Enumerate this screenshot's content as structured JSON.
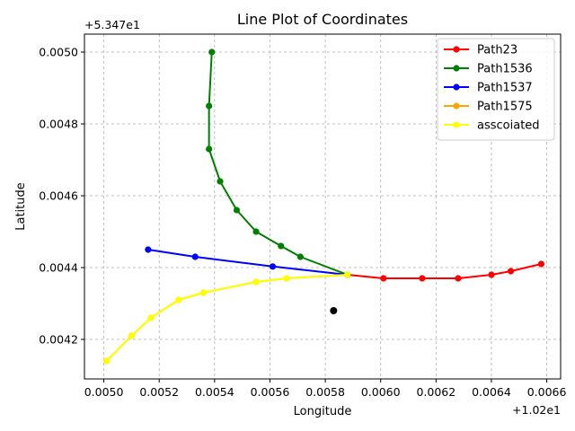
{
  "chart_data": {
    "type": "line",
    "title": "Line Plot of Coordinates",
    "xlabel": "Longitude",
    "ylabel": "Latitude",
    "x_offset_label": "+1.02e1",
    "y_offset_label": "+5.347e1",
    "xlim": [
      0.00493,
      0.00665
    ],
    "ylim": [
      0.00409,
      0.00505
    ],
    "xticks": [
      "0.0050",
      "0.0052",
      "0.0054",
      "0.0056",
      "0.0058",
      "0.0060",
      "0.0062",
      "0.0064",
      "0.0066"
    ],
    "xtick_values": [
      0.005,
      0.0052,
      0.0054,
      0.0056,
      0.0058,
      0.006,
      0.0062,
      0.0064,
      0.0066
    ],
    "yticks": [
      "0.0042",
      "0.0044",
      "0.0046",
      "0.0048",
      "0.0050"
    ],
    "ytick_values": [
      0.0042,
      0.0044,
      0.0046,
      0.0048,
      0.005
    ],
    "grid": true,
    "legend_position": "upper right",
    "series": [
      {
        "name": "Path23",
        "color": "#ff0000",
        "x": [
          0.00588,
          0.00601,
          0.00615,
          0.00628,
          0.0064,
          0.00647,
          0.00658
        ],
        "y": [
          0.00438,
          0.00437,
          0.00437,
          0.00437,
          0.00438,
          0.00439,
          0.00441
        ]
      },
      {
        "name": "Path1536",
        "color": "#008000",
        "x": [
          0.00539,
          0.00538,
          0.00538,
          0.00542,
          0.00548,
          0.00555,
          0.00564,
          0.00571,
          0.00588
        ],
        "y": [
          0.005,
          0.00485,
          0.00473,
          0.00464,
          0.00456,
          0.0045,
          0.00446,
          0.00443,
          0.00438
        ]
      },
      {
        "name": "Path1537",
        "color": "#0000ff",
        "x": [
          0.00516,
          0.00533,
          0.00561,
          0.00588
        ],
        "y": [
          0.00445,
          0.00443,
          0.004403,
          0.00438
        ]
      },
      {
        "name": "Path1575",
        "color": "#ffa500",
        "x": [
          0.00501,
          0.0051,
          0.00517,
          0.00527,
          0.00536,
          0.00555,
          0.00566,
          0.00588
        ],
        "y": [
          0.00414,
          0.00421,
          0.00426,
          0.00431,
          0.00433,
          0.00436,
          0.00437,
          0.00438
        ]
      },
      {
        "name": "asscoiated",
        "color": "#ffff00",
        "x": [
          0.00501,
          0.0051,
          0.00517,
          0.00527,
          0.00536,
          0.00555,
          0.00566,
          0.00588
        ],
        "y": [
          0.00414,
          0.00421,
          0.00426,
          0.00431,
          0.00433,
          0.00436,
          0.00437,
          0.00438
        ]
      }
    ],
    "extra_points": [
      {
        "x": 0.00583,
        "y": 0.00428,
        "color": "#000000"
      }
    ]
  }
}
